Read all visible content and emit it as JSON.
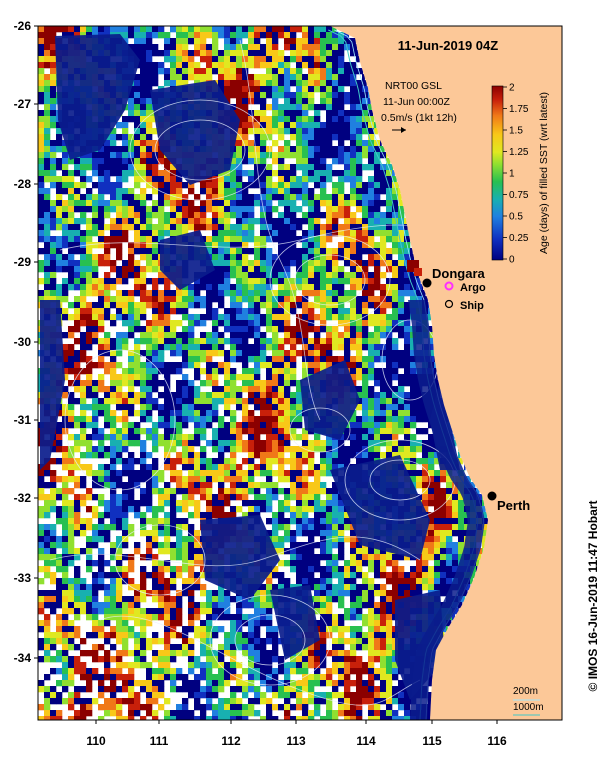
{
  "map": {
    "title": "11-Jun-2019 04Z",
    "credit": "© IMOS 16-Jun-2019 11:47 Hobart",
    "info": {
      "line1": "NRT00 GSL",
      "line2": "11-Jun 00:00Z",
      "line3": "0.5m/s (1kt 12h)"
    },
    "lon_labels": [
      "110",
      "111",
      "112",
      "113",
      "114",
      "115",
      "116"
    ],
    "lat_labels": [
      "-26",
      "-27",
      "-28",
      "-29",
      "-30",
      "-31",
      "-32",
      "-33",
      "-34"
    ],
    "colorbar": {
      "title": "Age (days) of filled SST (wrt latest)",
      "ticks": [
        "2",
        "1.75",
        "1.5",
        "1.25",
        "1",
        "0.75",
        "0.5",
        "0.25",
        "0"
      ],
      "colors": [
        "#8b0000",
        "#c8200a",
        "#f07818",
        "#f8c818",
        "#e0e820",
        "#90e030",
        "#28c050",
        "#18b0b0",
        "#2080e0",
        "#1030c0",
        "#000080"
      ]
    },
    "places": {
      "dongara": "Dongara",
      "perth": "Perth"
    },
    "legend": {
      "argo": "Argo",
      "ship": "Ship"
    },
    "depth_labels": {
      "shallow": "200m",
      "deep": "1000m"
    },
    "colors": {
      "land": "#fcc898",
      "ocean_deep": "#0a1c8c",
      "contour": "#e8f0ff",
      "argo": "#ff30ff"
    }
  }
}
